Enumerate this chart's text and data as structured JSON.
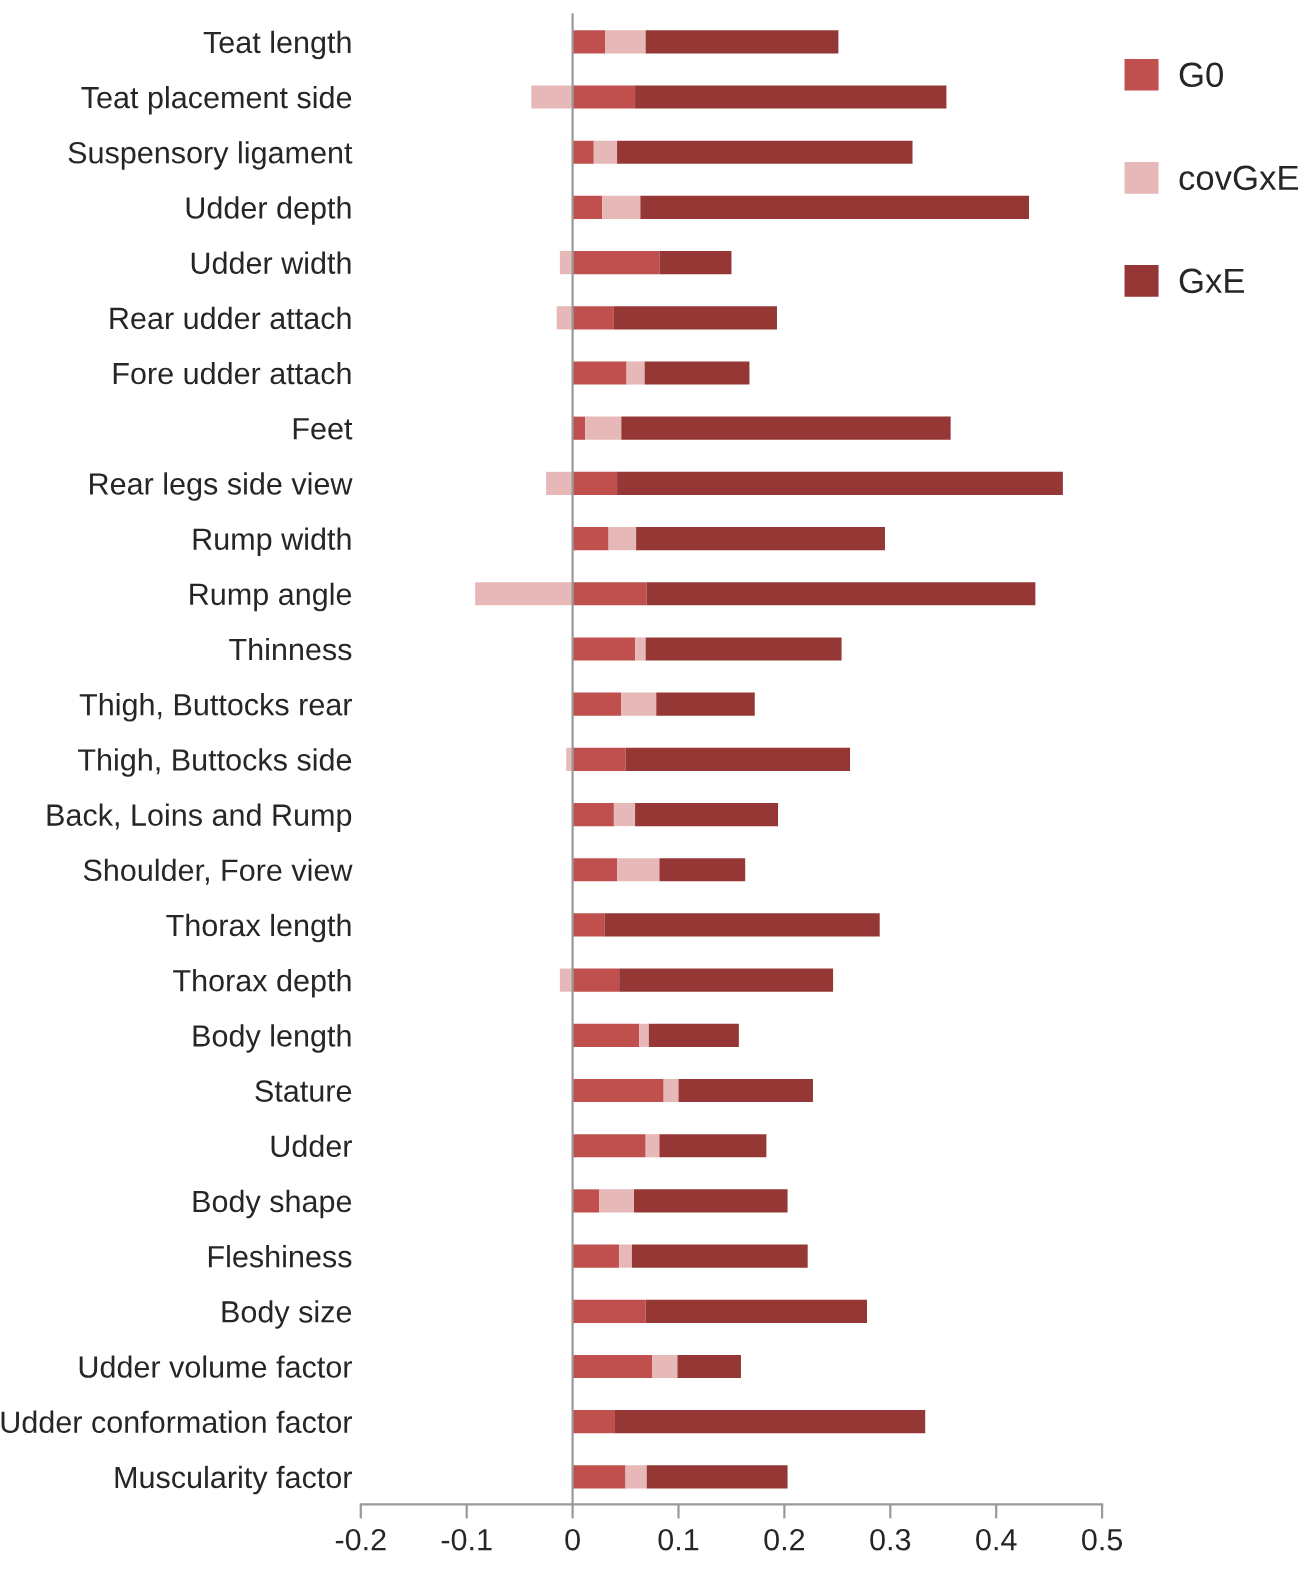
{
  "chart_data": {
    "type": "bar",
    "orientation": "horizontal",
    "stacked": true,
    "categories": [
      "Teat length",
      "Teat placement side",
      "Suspensory ligament",
      "Udder depth",
      "Udder width",
      "Rear udder attach",
      "Fore udder attach",
      "Feet",
      "Rear legs side view",
      "Rump width",
      "Rump angle",
      "Thinness",
      "Thigh, Buttocks rear",
      "Thigh, Buttocks side",
      "Back, Loins and Rump",
      "Shoulder, Fore view",
      "Thorax length",
      "Thorax depth",
      "Body length",
      "Stature",
      "Udder",
      "Body shape",
      "Fleshiness",
      "Body size",
      "Udder volume factor",
      "Udder conformation factor",
      "Muscularity factor"
    ],
    "series": [
      {
        "name": "G0",
        "color": "#c0504d",
        "values": [
          0.031,
          0.059,
          0.02,
          0.028,
          0.082,
          0.039,
          0.051,
          0.012,
          0.042,
          0.034,
          0.07,
          0.059,
          0.046,
          0.05,
          0.039,
          0.042,
          0.03,
          0.044,
          0.063,
          0.086,
          0.069,
          0.025,
          0.044,
          0.069,
          0.075,
          0.04,
          0.05
        ]
      },
      {
        "name": "covGxE",
        "color": "#e6b9b8",
        "values": [
          0.038,
          -0.039,
          0.022,
          0.036,
          -0.012,
          -0.015,
          0.017,
          0.034,
          -0.025,
          0.026,
          -0.092,
          0.01,
          0.033,
          -0.006,
          0.02,
          0.04,
          null,
          -0.012,
          0.009,
          0.014,
          0.013,
          0.033,
          0.012,
          null,
          0.024,
          null,
          0.02
        ]
      },
      {
        "name": "GxE",
        "color": "#953735",
        "values": [
          0.182,
          0.294,
          0.279,
          0.367,
          0.068,
          0.154,
          0.099,
          0.311,
          0.421,
          0.235,
          0.367,
          0.185,
          0.093,
          0.212,
          0.135,
          0.081,
          0.26,
          0.202,
          0.085,
          0.127,
          0.101,
          0.145,
          0.166,
          0.209,
          0.06,
          0.293,
          0.133
        ]
      }
    ],
    "xlim": [
      -0.2,
      0.5
    ],
    "xticks": [
      -0.2,
      -0.1,
      0,
      0.1,
      0.2,
      0.3,
      0.4,
      0.5
    ],
    "legend": "right"
  }
}
